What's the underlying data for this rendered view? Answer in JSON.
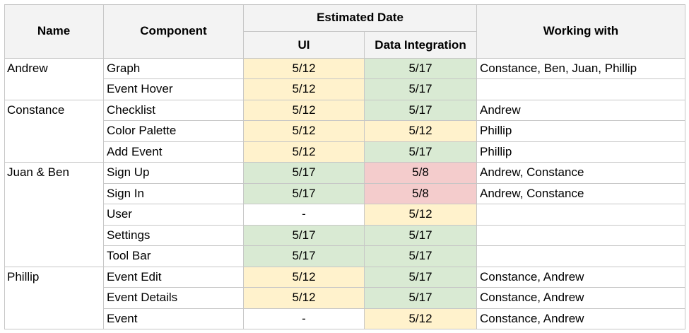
{
  "headers": {
    "name": "Name",
    "component": "Component",
    "estimated_date": "Estimated Date",
    "ui": "UI",
    "data_integration": "Data Integration",
    "working_with": "Working with"
  },
  "groups": [
    {
      "name": "Andrew",
      "start": 0,
      "span": 2
    },
    {
      "name": "Constance",
      "start": 2,
      "span": 3
    },
    {
      "name": "Juan & Ben",
      "start": 5,
      "span": 5
    },
    {
      "name": "Phillip",
      "start": 10,
      "span": 3
    }
  ],
  "rows": [
    {
      "component": "Graph",
      "ui": "5/12",
      "ui_status": "yellow",
      "data": "5/17",
      "data_status": "green",
      "working_with": "Constance, Ben, Juan, Phillip"
    },
    {
      "component": "Event Hover",
      "ui": "5/12",
      "ui_status": "yellow",
      "data": "5/17",
      "data_status": "green",
      "working_with": ""
    },
    {
      "component": "Checklist",
      "ui": "5/12",
      "ui_status": "yellow",
      "data": "5/17",
      "data_status": "green",
      "working_with": "Andrew"
    },
    {
      "component": "Color Palette",
      "ui": "5/12",
      "ui_status": "yellow",
      "data": "5/12",
      "data_status": "yellow",
      "working_with": "Phillip"
    },
    {
      "component": "Add Event",
      "ui": "5/12",
      "ui_status": "yellow",
      "data": "5/17",
      "data_status": "green",
      "working_with": "Phillip"
    },
    {
      "component": "Sign Up",
      "ui": "5/17",
      "ui_status": "green",
      "data": "5/8",
      "data_status": "red",
      "working_with": "Andrew, Constance"
    },
    {
      "component": "Sign In",
      "ui": "5/17",
      "ui_status": "green",
      "data": "5/8",
      "data_status": "red",
      "working_with": "Andrew, Constance"
    },
    {
      "component": "User",
      "ui": "-",
      "ui_status": "white",
      "data": "5/12",
      "data_status": "yellow",
      "working_with": ""
    },
    {
      "component": "Settings",
      "ui": "5/17",
      "ui_status": "green",
      "data": "5/17",
      "data_status": "green",
      "working_with": ""
    },
    {
      "component": "Tool Bar",
      "ui": "5/17",
      "ui_status": "green",
      "data": "5/17",
      "data_status": "green",
      "working_with": ""
    },
    {
      "component": "Event Edit",
      "ui": "5/12",
      "ui_status": "yellow",
      "data": "5/17",
      "data_status": "green",
      "working_with": "Constance, Andrew"
    },
    {
      "component": "Event Details",
      "ui": "5/12",
      "ui_status": "yellow",
      "data": "5/17",
      "data_status": "green",
      "working_with": "Constance, Andrew"
    },
    {
      "component": "Event",
      "ui": "-",
      "ui_status": "white",
      "data": "5/12",
      "data_status": "yellow",
      "working_with": "Constance, Andrew"
    }
  ],
  "colors": {
    "yellow": "#fff2cc",
    "green": "#d9ead3",
    "red": "#f4cccc",
    "white": "#ffffff",
    "header_bg": "#f3f3f3",
    "gridline": "#c6c6c6"
  }
}
